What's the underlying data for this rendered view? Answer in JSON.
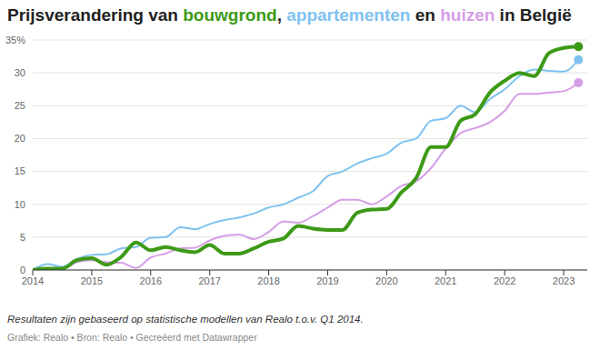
{
  "chart_data": {
    "type": "line",
    "title": "Prijsverandering van bouwgrond, appartementen en huizen in België",
    "annotations": [
      "Resultaten zijn gebaseerd op statistische modellen van Realo t.o.v. Q1 2014.",
      "Grafiek: Realo • Bron: Realo • Gecreëerd met Datawrapper"
    ],
    "x": [
      2014,
      2014.25,
      2014.5,
      2014.75,
      2015,
      2015.25,
      2015.5,
      2015.75,
      2016,
      2016.25,
      2016.5,
      2016.75,
      2017,
      2017.25,
      2017.5,
      2017.75,
      2018,
      2018.25,
      2018.5,
      2018.75,
      2019,
      2019.25,
      2019.5,
      2019.75,
      2020,
      2020.25,
      2020.5,
      2020.75,
      2021,
      2021.25,
      2021.5,
      2021.75,
      2022,
      2022.25,
      2022.5,
      2022.75,
      2023,
      2023.25
    ],
    "series": [
      {
        "name": "appartementen",
        "color": "#7fc2ef",
        "marker": "end",
        "values": [
          0,
          0.9,
          0.5,
          1.7,
          2.3,
          2.4,
          3.3,
          3.5,
          4.9,
          5,
          6.5,
          6.2,
          7,
          7.6,
          8,
          8.6,
          9.5,
          10,
          11,
          12,
          14.3,
          15,
          16.2,
          17,
          17.7,
          19.4,
          20,
          22.7,
          23.1,
          25,
          24,
          26,
          27.5,
          29.5,
          30.5,
          30.3,
          30.2,
          32
        ]
      },
      {
        "name": "huizen",
        "color": "#d59ee6",
        "marker": "end",
        "values": [
          0,
          0.2,
          0.1,
          1.2,
          1.5,
          1.2,
          1.1,
          0.3,
          1.9,
          2.5,
          3.3,
          3.4,
          4.5,
          5.2,
          5.4,
          4.7,
          5.8,
          7.4,
          7.2,
          8.2,
          9.5,
          10.7,
          10.7,
          10,
          11.2,
          12.8,
          13.5,
          15.5,
          18.5,
          20.8,
          21.6,
          22.5,
          24.2,
          26.8,
          26.8,
          27,
          27.2,
          28.5
        ]
      },
      {
        "name": "bouwgrond",
        "color": "#3d9a17",
        "marker": "end",
        "values": [
          0,
          0.2,
          0.2,
          1.5,
          1.8,
          0.8,
          2,
          4.2,
          3,
          3.5,
          3,
          2.7,
          3.8,
          2.5,
          2.5,
          3.3,
          4.3,
          4.8,
          6.7,
          6.3,
          6.1,
          6.1,
          8.7,
          9.2,
          9.3,
          11.8,
          14,
          18.7,
          18.7,
          22.7,
          23.7,
          27,
          28.8,
          30,
          29.5,
          33,
          33.8,
          34
        ]
      }
    ],
    "xlim": [
      2014,
      2023.4
    ],
    "xticks": [
      2014,
      2015,
      2016,
      2017,
      2018,
      2019,
      2020,
      2021,
      2022,
      2023
    ],
    "ylim": [
      0,
      35
    ],
    "yticks": [
      0,
      5,
      10,
      15,
      20,
      25,
      30,
      {
        "value": 35,
        "label": "35%"
      }
    ],
    "grid": true
  }
}
